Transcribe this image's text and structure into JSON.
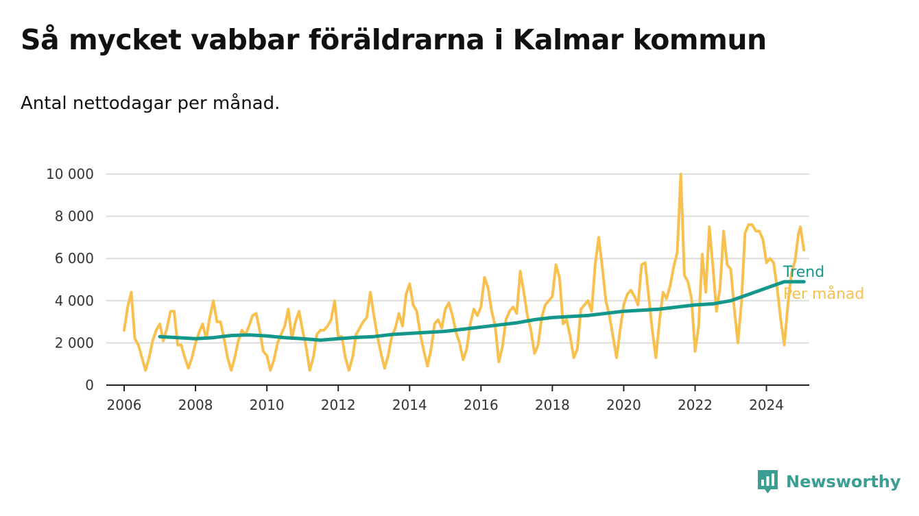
{
  "chart_data": {
    "type": "line",
    "title": "Så mycket vabbar föräldrarna i Kalmar kommun",
    "subtitle": "Antal nettodagar per månad.",
    "xlabel": "",
    "ylabel": "",
    "xlim": [
      2005.5,
      2025.2
    ],
    "ylim": [
      0,
      10000
    ],
    "x_ticks": [
      2006,
      2008,
      2010,
      2012,
      2014,
      2016,
      2018,
      2020,
      2022,
      2024
    ],
    "x_tick_labels": [
      "2006",
      "2008",
      "2010",
      "2012",
      "2014",
      "2016",
      "2018",
      "2020",
      "2022",
      "2024"
    ],
    "y_ticks": [
      0,
      2000,
      4000,
      6000,
      8000,
      10000
    ],
    "y_tick_labels": [
      "0",
      "2 000",
      "4 000",
      "6 000",
      "8 000",
      "10 000"
    ],
    "grid": true,
    "legend": "end-of-line labels, right",
    "series": [
      {
        "name": "Per månad",
        "color": "#f8c04f",
        "points": [
          [
            2006.0,
            2600
          ],
          [
            2006.1,
            3700
          ],
          [
            2006.2,
            4400
          ],
          [
            2006.3,
            2200
          ],
          [
            2006.4,
            1900
          ],
          [
            2006.5,
            1300
          ],
          [
            2006.6,
            700
          ],
          [
            2006.7,
            1300
          ],
          [
            2006.8,
            2100
          ],
          [
            2006.9,
            2600
          ],
          [
            2007.0,
            2900
          ],
          [
            2007.1,
            2100
          ],
          [
            2007.2,
            2700
          ],
          [
            2007.3,
            3500
          ],
          [
            2007.4,
            3500
          ],
          [
            2007.5,
            1900
          ],
          [
            2007.6,
            1900
          ],
          [
            2007.7,
            1300
          ],
          [
            2007.8,
            800
          ],
          [
            2007.9,
            1300
          ],
          [
            2008.0,
            2000
          ],
          [
            2008.1,
            2500
          ],
          [
            2008.2,
            2900
          ],
          [
            2008.3,
            2200
          ],
          [
            2008.4,
            3200
          ],
          [
            2008.5,
            4000
          ],
          [
            2008.6,
            3000
          ],
          [
            2008.7,
            3000
          ],
          [
            2008.8,
            2200
          ],
          [
            2008.9,
            1300
          ],
          [
            2009.0,
            700
          ],
          [
            2009.1,
            1300
          ],
          [
            2009.2,
            2100
          ],
          [
            2009.3,
            2600
          ],
          [
            2009.4,
            2400
          ],
          [
            2009.5,
            2800
          ],
          [
            2009.6,
            3300
          ],
          [
            2009.7,
            3400
          ],
          [
            2009.8,
            2600
          ],
          [
            2009.9,
            1600
          ],
          [
            2010.0,
            1400
          ],
          [
            2010.1,
            700
          ],
          [
            2010.2,
            1200
          ],
          [
            2010.3,
            2000
          ],
          [
            2010.4,
            2400
          ],
          [
            2010.5,
            2800
          ],
          [
            2010.6,
            3600
          ],
          [
            2010.7,
            2200
          ],
          [
            2010.8,
            3000
          ],
          [
            2010.9,
            3500
          ],
          [
            2011.0,
            2600
          ],
          [
            2011.1,
            1800
          ],
          [
            2011.2,
            700
          ],
          [
            2011.3,
            1300
          ],
          [
            2011.4,
            2400
          ],
          [
            2011.5,
            2600
          ],
          [
            2011.6,
            2600
          ],
          [
            2011.7,
            2800
          ],
          [
            2011.8,
            3100
          ],
          [
            2011.9,
            4000
          ],
          [
            2012.0,
            2300
          ],
          [
            2012.1,
            2300
          ],
          [
            2012.2,
            1300
          ],
          [
            2012.3,
            700
          ],
          [
            2012.4,
            1300
          ],
          [
            2012.5,
            2400
          ],
          [
            2012.6,
            2700
          ],
          [
            2012.7,
            3000
          ],
          [
            2012.8,
            3200
          ],
          [
            2012.9,
            4400
          ],
          [
            2013.0,
            3300
          ],
          [
            2013.1,
            2300
          ],
          [
            2013.2,
            1500
          ],
          [
            2013.3,
            800
          ],
          [
            2013.4,
            1400
          ],
          [
            2013.5,
            2300
          ],
          [
            2013.6,
            2700
          ],
          [
            2013.7,
            3400
          ],
          [
            2013.8,
            2800
          ],
          [
            2013.9,
            4300
          ],
          [
            2014.0,
            4800
          ],
          [
            2014.1,
            3800
          ],
          [
            2014.2,
            3500
          ],
          [
            2014.3,
            2400
          ],
          [
            2014.4,
            1600
          ],
          [
            2014.5,
            900
          ],
          [
            2014.6,
            1700
          ],
          [
            2014.7,
            2900
          ],
          [
            2014.8,
            3100
          ],
          [
            2014.9,
            2700
          ],
          [
            2015.0,
            3600
          ],
          [
            2015.1,
            3900
          ],
          [
            2015.2,
            3300
          ],
          [
            2015.3,
            2500
          ],
          [
            2015.4,
            2000
          ],
          [
            2015.5,
            1200
          ],
          [
            2015.6,
            1700
          ],
          [
            2015.7,
            2900
          ],
          [
            2015.8,
            3600
          ],
          [
            2015.9,
            3300
          ],
          [
            2016.0,
            3700
          ],
          [
            2016.1,
            5100
          ],
          [
            2016.2,
            4600
          ],
          [
            2016.3,
            3500
          ],
          [
            2016.4,
            2800
          ],
          [
            2016.5,
            1100
          ],
          [
            2016.6,
            1800
          ],
          [
            2016.7,
            3100
          ],
          [
            2016.8,
            3500
          ],
          [
            2016.9,
            3700
          ],
          [
            2017.0,
            3400
          ],
          [
            2017.1,
            5400
          ],
          [
            2017.2,
            4400
          ],
          [
            2017.3,
            3300
          ],
          [
            2017.4,
            2600
          ],
          [
            2017.5,
            1500
          ],
          [
            2017.6,
            1900
          ],
          [
            2017.7,
            3200
          ],
          [
            2017.8,
            3800
          ],
          [
            2017.9,
            4000
          ],
          [
            2018.0,
            4200
          ],
          [
            2018.1,
            5700
          ],
          [
            2018.2,
            5100
          ],
          [
            2018.3,
            2900
          ],
          [
            2018.4,
            3100
          ],
          [
            2018.5,
            2300
          ],
          [
            2018.6,
            1300
          ],
          [
            2018.7,
            1700
          ],
          [
            2018.8,
            3600
          ],
          [
            2018.9,
            3800
          ],
          [
            2019.0,
            4000
          ],
          [
            2019.1,
            3500
          ],
          [
            2019.2,
            5700
          ],
          [
            2019.3,
            7000
          ],
          [
            2019.4,
            5600
          ],
          [
            2019.5,
            4000
          ],
          [
            2019.6,
            3300
          ],
          [
            2019.7,
            2300
          ],
          [
            2019.8,
            1300
          ],
          [
            2019.9,
            2600
          ],
          [
            2020.0,
            3800
          ],
          [
            2020.1,
            4300
          ],
          [
            2020.2,
            4500
          ],
          [
            2020.3,
            4200
          ],
          [
            2020.4,
            3800
          ],
          [
            2020.5,
            5700
          ],
          [
            2020.6,
            5800
          ],
          [
            2020.7,
            4200
          ],
          [
            2020.8,
            2600
          ],
          [
            2020.9,
            1300
          ],
          [
            2021.0,
            3000
          ],
          [
            2021.1,
            4400
          ],
          [
            2021.2,
            4100
          ],
          [
            2021.3,
            4700
          ],
          [
            2021.4,
            5600
          ],
          [
            2021.5,
            6300
          ],
          [
            2021.6,
            10000
          ],
          [
            2021.7,
            5200
          ],
          [
            2021.8,
            4900
          ],
          [
            2021.9,
            4100
          ],
          [
            2022.0,
            1600
          ],
          [
            2022.1,
            2800
          ],
          [
            2022.2,
            6200
          ],
          [
            2022.3,
            4400
          ],
          [
            2022.4,
            7500
          ],
          [
            2022.5,
            5600
          ],
          [
            2022.6,
            3500
          ],
          [
            2022.7,
            4600
          ],
          [
            2022.8,
            7300
          ],
          [
            2022.9,
            5700
          ],
          [
            2023.0,
            5500
          ],
          [
            2023.1,
            3600
          ],
          [
            2023.2,
            2000
          ],
          [
            2023.3,
            3900
          ],
          [
            2023.4,
            7200
          ],
          [
            2023.5,
            7600
          ],
          [
            2023.6,
            7600
          ],
          [
            2023.7,
            7300
          ],
          [
            2023.8,
            7300
          ],
          [
            2023.9,
            6900
          ],
          [
            2024.0,
            5800
          ],
          [
            2024.1,
            6000
          ],
          [
            2024.2,
            5800
          ],
          [
            2024.3,
            4600
          ],
          [
            2024.4,
            3100
          ],
          [
            2024.5,
            1900
          ],
          [
            2024.6,
            3800
          ],
          [
            2024.7,
            5300
          ],
          [
            2024.8,
            5900
          ],
          [
            2024.9,
            7200
          ],
          [
            2024.95,
            7500
          ],
          [
            2025.05,
            6400
          ]
        ]
      },
      {
        "name": "Trend",
        "color": "#13978b",
        "points": [
          [
            2007.0,
            2300
          ],
          [
            2007.5,
            2250
          ],
          [
            2008.0,
            2200
          ],
          [
            2008.5,
            2250
          ],
          [
            2009.0,
            2350
          ],
          [
            2009.5,
            2380
          ],
          [
            2010.0,
            2330
          ],
          [
            2010.5,
            2250
          ],
          [
            2011.0,
            2200
          ],
          [
            2011.5,
            2130
          ],
          [
            2012.0,
            2200
          ],
          [
            2012.5,
            2260
          ],
          [
            2013.0,
            2300
          ],
          [
            2013.5,
            2400
          ],
          [
            2014.0,
            2450
          ],
          [
            2014.5,
            2500
          ],
          [
            2015.0,
            2550
          ],
          [
            2015.5,
            2650
          ],
          [
            2016.0,
            2750
          ],
          [
            2016.5,
            2850
          ],
          [
            2017.0,
            2950
          ],
          [
            2017.5,
            3100
          ],
          [
            2018.0,
            3200
          ],
          [
            2018.5,
            3250
          ],
          [
            2019.0,
            3300
          ],
          [
            2019.5,
            3400
          ],
          [
            2020.0,
            3500
          ],
          [
            2020.5,
            3550
          ],
          [
            2021.0,
            3600
          ],
          [
            2021.5,
            3700
          ],
          [
            2022.0,
            3800
          ],
          [
            2022.5,
            3850
          ],
          [
            2023.0,
            4000
          ],
          [
            2023.5,
            4300
          ],
          [
            2024.0,
            4600
          ],
          [
            2024.5,
            4900
          ],
          [
            2025.05,
            4900
          ]
        ]
      }
    ]
  },
  "series_labels": {
    "trend": "Trend",
    "monthly": "Per månad"
  },
  "brand": {
    "name": "Newsworthy",
    "icon": "newsworthy-logo-icon",
    "color": "#3a9e92"
  }
}
